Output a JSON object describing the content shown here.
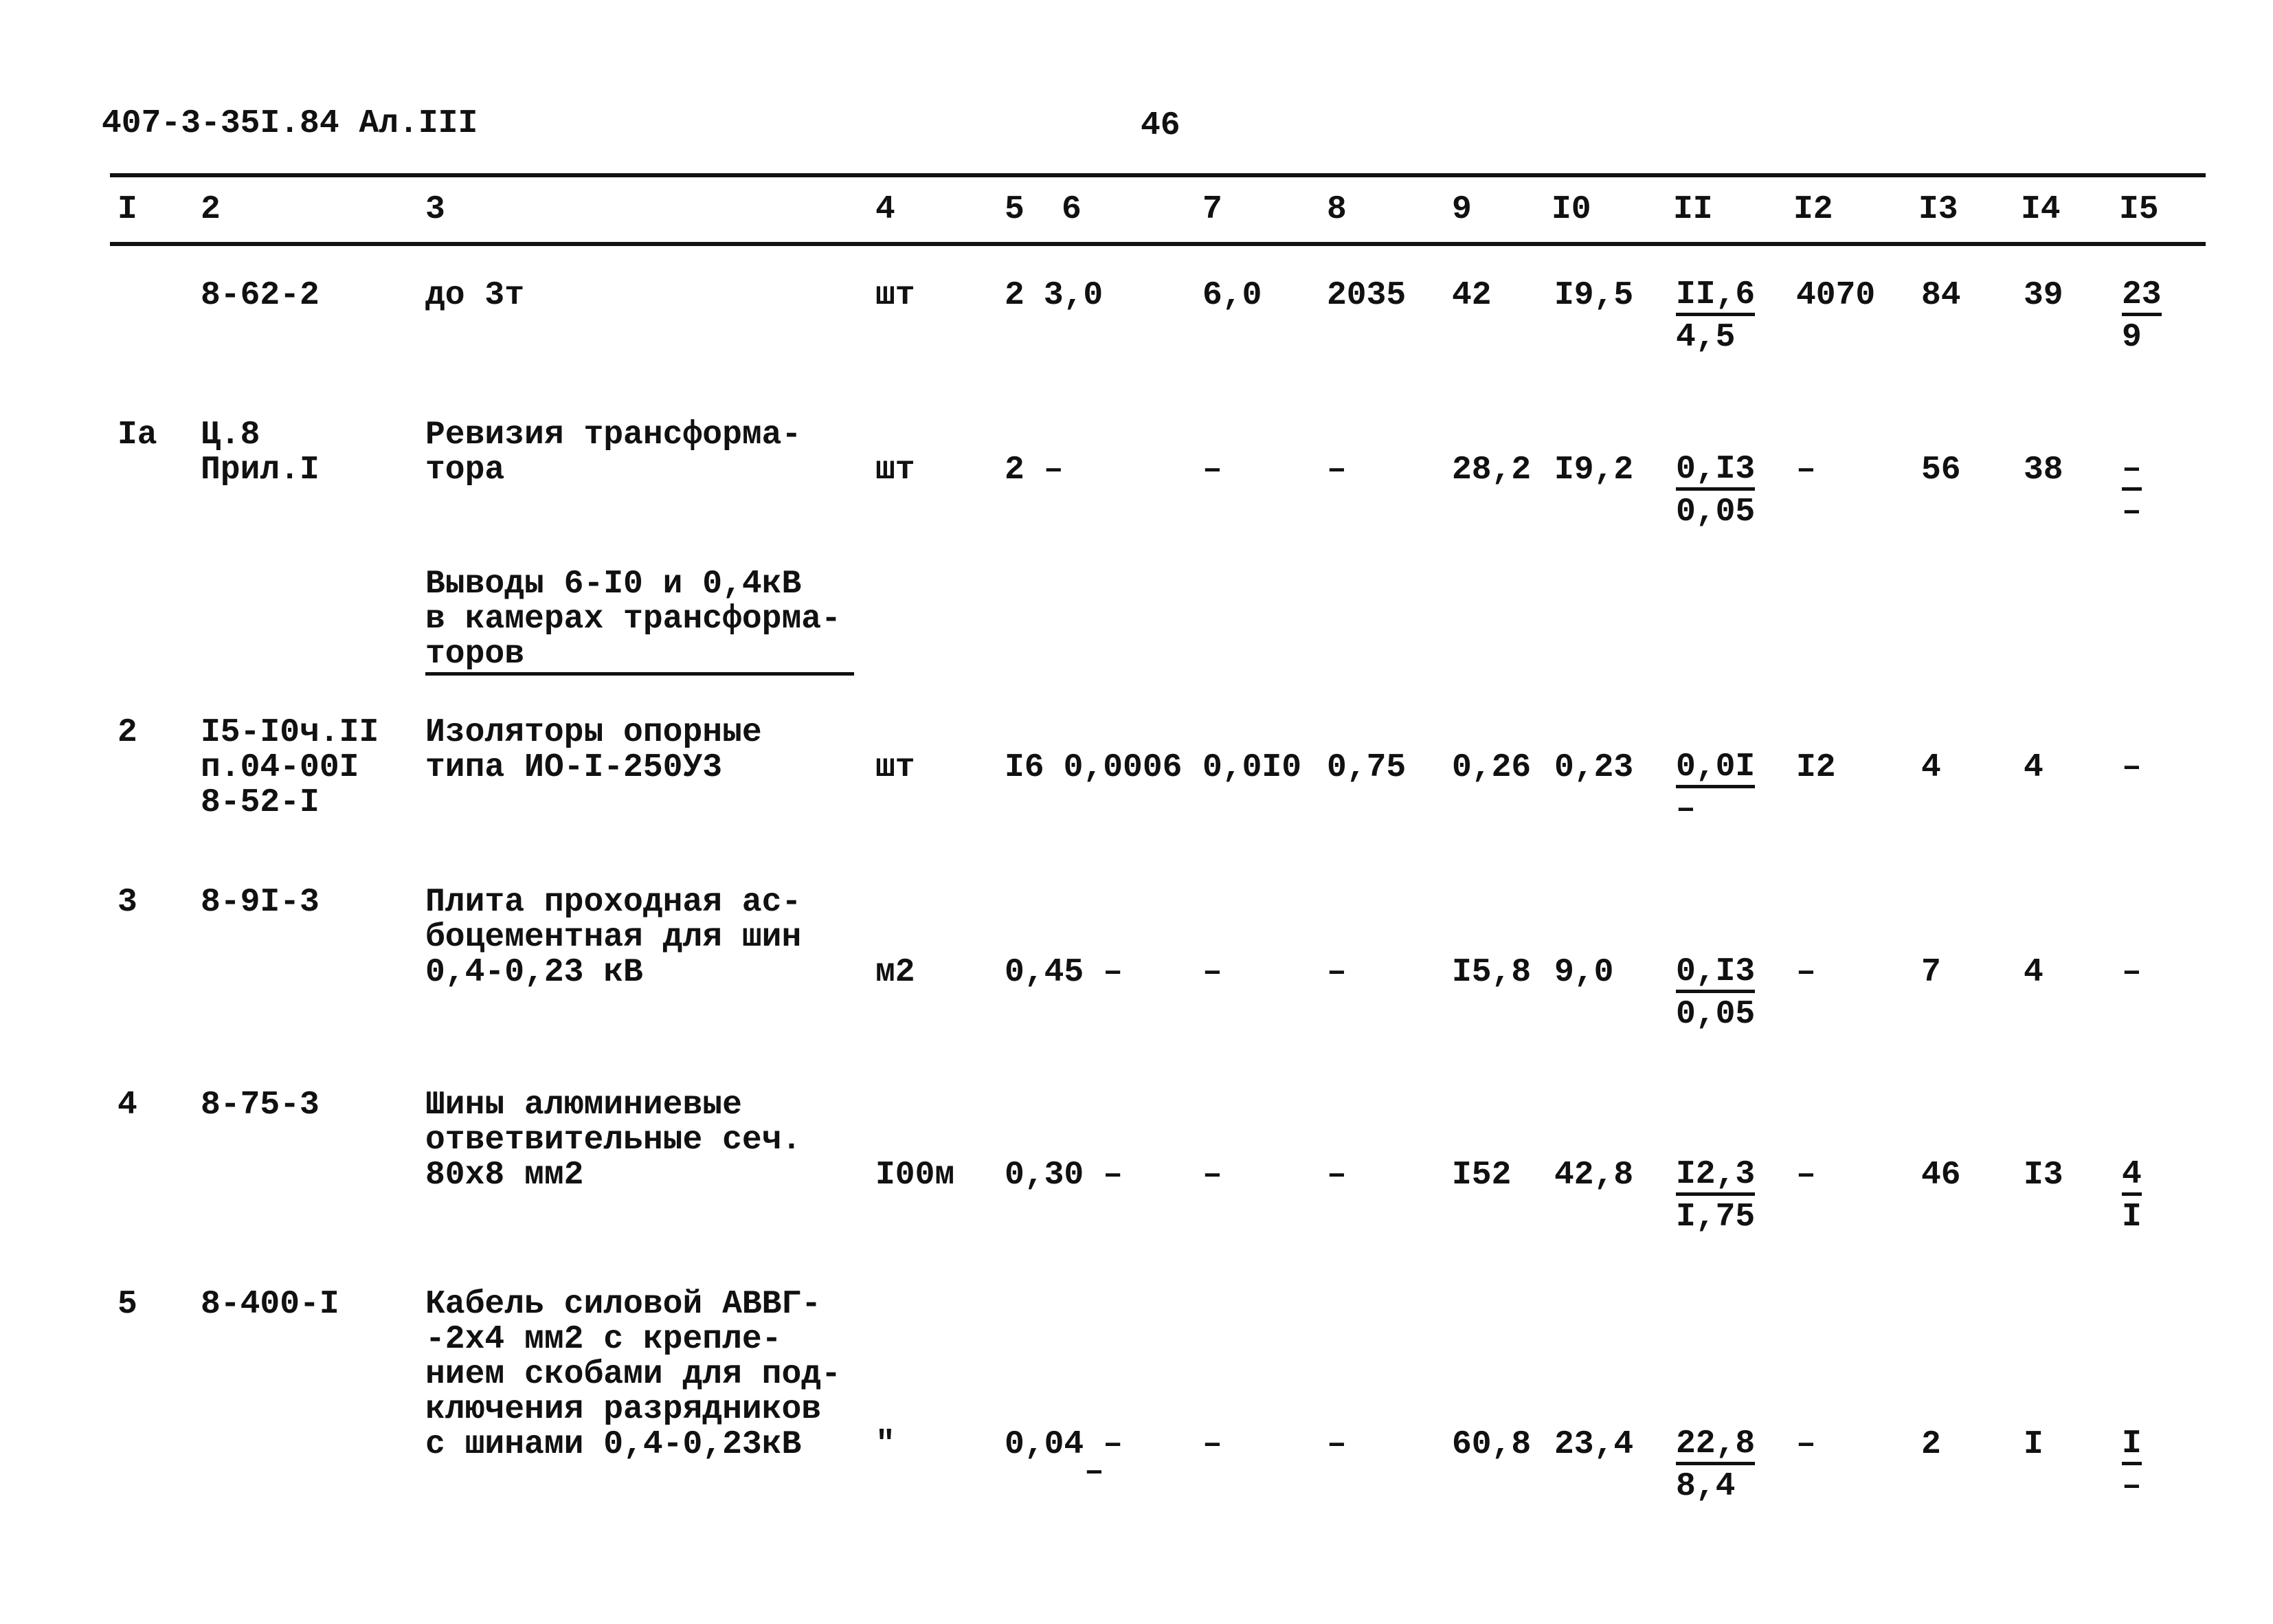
{
  "header": {
    "doc_code": "407-3-35I.84 Ал.III",
    "page_number": "46"
  },
  "columns": [
    "I",
    "2",
    "3",
    "4",
    "5",
    "6",
    "7",
    "8",
    "9",
    "I0",
    "II",
    "I2",
    "I3",
    "I4",
    "I5"
  ],
  "rows": [
    {
      "c1": "",
      "c2": [
        "8-62-2"
      ],
      "c3": [
        "до 3т"
      ],
      "c4": "шт",
      "c5": "2",
      "c6": "3,0",
      "c7": "6,0",
      "c8": "2035",
      "c9": "42",
      "c10": "I9,5",
      "c11": {
        "top": "II,6",
        "bottom": "4,5"
      },
      "c12": "4070",
      "c13": "84",
      "c14": "39",
      "c15": {
        "top": "23",
        "bottom": "9"
      }
    },
    {
      "c1": "Iа",
      "c2": [
        "Ц.8",
        "Прил.I"
      ],
      "c3": [
        "Ревизия трансформа-",
        "тора"
      ],
      "c4": "шт",
      "c5": "2",
      "c6": "–",
      "c7": "–",
      "c8": "–",
      "c9": "28,2",
      "c10": "I9,2",
      "c11": {
        "top": "0,I3",
        "bottom": "0,05"
      },
      "c12": "–",
      "c13": "56",
      "c14": "38",
      "c15": {
        "top": "–",
        "bottom": "–"
      }
    },
    {
      "section": true,
      "c3": [
        "Выводы 6-I0 и 0,4кВ",
        "в камерах трансформа-",
        "торов"
      ]
    },
    {
      "c1": "2",
      "c2": [
        "I5-I0ч.II",
        "п.04-00I",
        "8-52-I"
      ],
      "c3": [
        "Изоляторы опорные",
        "типа ИО-I-250У3"
      ],
      "c4": "шт",
      "c5": "I6",
      "c6": "0,0006",
      "c7": "0,0I0",
      "c8": "0,75",
      "c9": "0,26",
      "c10": "0,23",
      "c11": {
        "top": "0,0I",
        "bottom": "–"
      },
      "c12": "I2",
      "c13": "4",
      "c14": "4",
      "c15": "–"
    },
    {
      "c1": "3",
      "c2": [
        "8-9I-3"
      ],
      "c3": [
        "Плита проходная ас-",
        "боцементная для шин",
        "0,4-0,23 кВ"
      ],
      "c4": "м2",
      "c5": "0,45",
      "c6": "–",
      "c7": "–",
      "c8": "–",
      "c9": "I5,8",
      "c10": "9,0",
      "c11": {
        "top": "0,I3",
        "bottom": "0,05"
      },
      "c12": "–",
      "c13": "7",
      "c14": "4",
      "c15": "–"
    },
    {
      "c1": "4",
      "c2": [
        "8-75-3"
      ],
      "c3": [
        "Шины алюминиевые",
        "ответвительные сеч.",
        "80х8 мм2"
      ],
      "c4": "I00м",
      "c5": "0,30",
      "c6": "–",
      "c7": "–",
      "c8": "–",
      "c9": "I52",
      "c10": "42,8",
      "c11": {
        "top": "I2,3",
        "bottom": "I,75"
      },
      "c12": "–",
      "c13": "46",
      "c14": "I3",
      "c15": {
        "top": "4",
        "bottom": "I"
      }
    },
    {
      "c1": "5",
      "c2": [
        "8-400-I"
      ],
      "c3": [
        "Кабель силовой АВВГ-",
        "-2х4 мм2 с крепле-",
        "нием скобами для под-",
        "ключения разрядников",
        "с шинами 0,4-0,23кВ"
      ],
      "c4": "\"",
      "c5": "0,04",
      "c6": "–",
      "c6b": "–",
      "c7": "–",
      "c8": "–",
      "c9": "60,8",
      "c10": "23,4",
      "c11": {
        "top": "22,8",
        "bottom": "8,4"
      },
      "c12": "–",
      "c13": "2",
      "c14": "I",
      "c15": {
        "top": "I",
        "bottom": "–"
      }
    }
  ]
}
